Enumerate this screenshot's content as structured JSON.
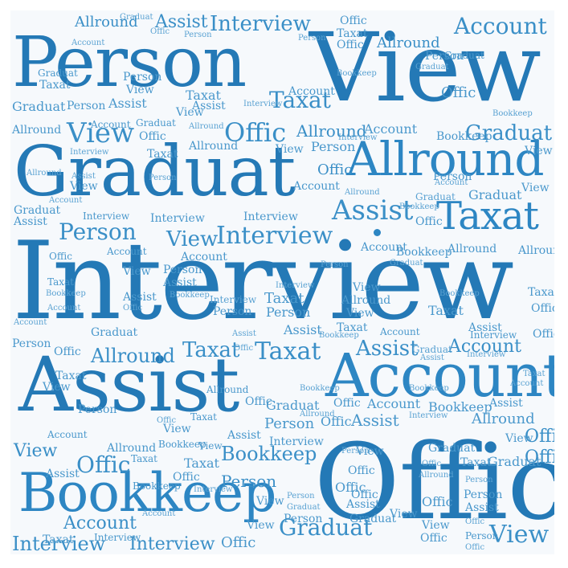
{
  "words": {
    "person": "Person",
    "view": "View",
    "graduat": "Graduat",
    "allround": "Allround",
    "taxat": "Taxat",
    "interview": "Interview",
    "assist": "Assist",
    "account": "Account",
    "offic": "Offic",
    "bookkeep": "Bookkeep"
  },
  "colors": {
    "primary": "#2d86c3",
    "secondary": "#4a98cc",
    "light": "#5aa2d2",
    "background": "#f6f9fc"
  }
}
